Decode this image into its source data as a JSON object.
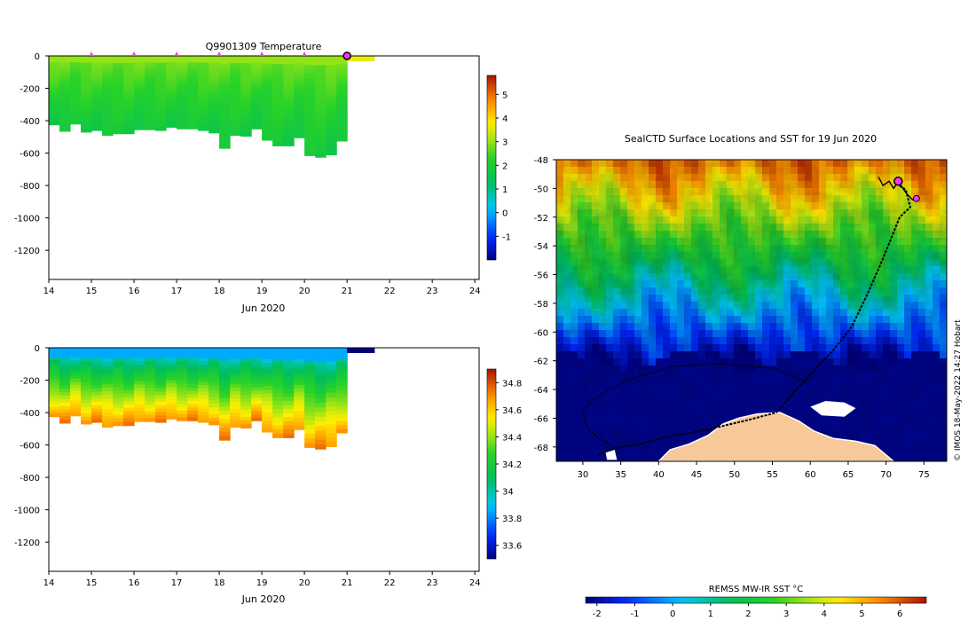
{
  "chart_data": [
    {
      "type": "heatmap",
      "title": "Q9901309  Temperature",
      "xlabel": "Jun 2020",
      "x_ticks": [
        "14",
        "15",
        "16",
        "17",
        "18",
        "19",
        "20",
        "21",
        "22",
        "23",
        "24"
      ],
      "xlim": [
        14,
        24.1
      ],
      "y_ticks": [
        "0",
        "-200",
        "-400",
        "-600",
        "-800",
        "-1000",
        "-1200"
      ],
      "ylim": [
        -1380,
        0
      ],
      "colorbar": {
        "ticks": [
          "-1",
          "0",
          "1",
          "2",
          "3",
          "4",
          "5"
        ],
        "range": [
          -2,
          5.8
        ]
      },
      "profile_markers_day": [
        15,
        16,
        17,
        18,
        19,
        20
      ],
      "last_position_day": 21,
      "profile_depth_m": [
        [
          14.0,
          -425
        ],
        [
          14.25,
          -465
        ],
        [
          14.5,
          -420
        ],
        [
          14.75,
          -470
        ],
        [
          15.0,
          -460
        ],
        [
          15.25,
          -490
        ],
        [
          15.5,
          -480
        ],
        [
          15.75,
          -480
        ],
        [
          16.0,
          -455
        ],
        [
          16.25,
          -455
        ],
        [
          16.5,
          -460
        ],
        [
          16.75,
          -440
        ],
        [
          17.0,
          -450
        ],
        [
          17.25,
          -450
        ],
        [
          17.5,
          -460
        ],
        [
          17.75,
          -475
        ],
        [
          18.0,
          -570
        ],
        [
          18.25,
          -490
        ],
        [
          18.5,
          -495
        ],
        [
          18.75,
          -450
        ],
        [
          19.0,
          -520
        ],
        [
          19.25,
          -555
        ],
        [
          19.5,
          -555
        ],
        [
          19.75,
          -505
        ],
        [
          20.0,
          -615
        ],
        [
          20.25,
          -625
        ],
        [
          20.5,
          -610
        ],
        [
          20.75,
          -525
        ],
        [
          21.0,
          -510
        ]
      ],
      "temperature_range_C": [
        1.0,
        3.2
      ]
    },
    {
      "type": "heatmap",
      "title": "",
      "xlabel": "Jun 2020",
      "x_ticks": [
        "14",
        "15",
        "16",
        "17",
        "18",
        "19",
        "20",
        "21",
        "22",
        "23",
        "24"
      ],
      "xlim": [
        14,
        24.1
      ],
      "y_ticks": [
        "0",
        "-200",
        "-400",
        "-600",
        "-800",
        "-1000",
        "-1200"
      ],
      "ylim": [
        -1380,
        0
      ],
      "colorbar": {
        "ticks": [
          "33.6",
          "33.8",
          "34",
          "34.2",
          "34.4",
          "34.6",
          "34.8"
        ],
        "range": [
          33.5,
          34.9
        ]
      },
      "salinity_range": [
        33.8,
        34.7
      ]
    },
    {
      "type": "heatmap",
      "title": "SealCTD Surface Locations and SST for 19 Jun 2020",
      "x_ticks": [
        "30",
        "35",
        "40",
        "45",
        "50",
        "55",
        "60",
        "65",
        "70",
        "75"
      ],
      "xlim": [
        26.5,
        78
      ],
      "y_ticks": [
        "-48",
        "-50",
        "-52",
        "-54",
        "-56",
        "-58",
        "-60",
        "-62",
        "-64",
        "-66",
        "-68"
      ],
      "ylim": [
        -69,
        -48
      ],
      "colorbar_label": "REMSS MW-IR SST °C",
      "colorbar_ticks": [
        "-2",
        "-1",
        "0",
        "1",
        "2",
        "3",
        "4",
        "5",
        "6"
      ],
      "colorbar_range": [
        -2.3,
        6.7
      ],
      "land_color": "#f7c99a",
      "track": [
        [
          32,
          -68.6
        ],
        [
          33.5,
          -68.2
        ],
        [
          35,
          -68.0
        ],
        [
          37.5,
          -67.8
        ],
        [
          41,
          -67.3
        ],
        [
          44.5,
          -67.0
        ],
        [
          48,
          -66.6
        ],
        [
          52,
          -66.1
        ],
        [
          55.5,
          -65.6
        ],
        [
          58.5,
          -63.8
        ],
        [
          61,
          -62.4
        ],
        [
          63,
          -61.3
        ],
        [
          65.5,
          -59.6
        ],
        [
          67.5,
          -57.4
        ],
        [
          69.5,
          -55.0
        ],
        [
          71.8,
          -52.0
        ],
        [
          73.2,
          -51.3
        ],
        [
          72.6,
          -50.1
        ],
        [
          71.2,
          -49.6
        ]
      ],
      "track_loop": [
        [
          59.5,
          -63.5
        ],
        [
          55,
          -62.5
        ],
        [
          48,
          -62.2
        ],
        [
          42,
          -62.4
        ],
        [
          36,
          -63.3
        ],
        [
          31.5,
          -64.6
        ],
        [
          30,
          -65.5
        ],
        [
          30.5,
          -66.6
        ],
        [
          32,
          -67.4
        ],
        [
          34,
          -67.9
        ]
      ],
      "current_position": [
        71.6,
        -49.5
      ],
      "recent_position": [
        74,
        -50.7
      ]
    }
  ],
  "credit": "© IMOS 18-May-2022 14:27 Hobart"
}
